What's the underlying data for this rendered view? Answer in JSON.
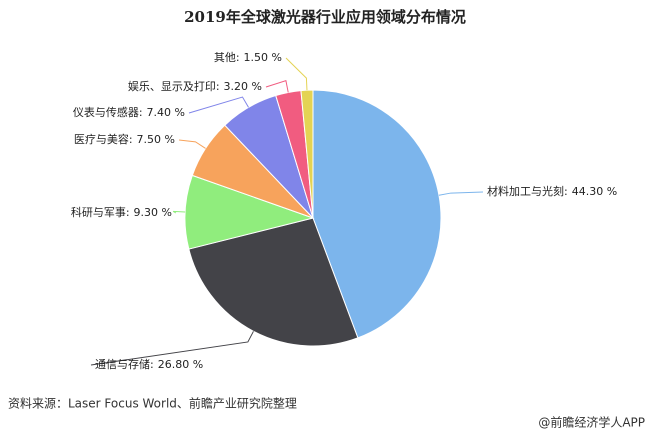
{
  "chart_data": {
    "type": "pie",
    "title": "2019年全球激光器行业应用领域分布情况",
    "categories": [
      "材料加工与光刻:",
      "通信与存储:",
      "科研与军事:",
      "医疗与美容:",
      "仪表与传感器:",
      "娱乐、显示及打印:",
      "其他:"
    ],
    "values": [
      44.3,
      26.8,
      9.3,
      7.5,
      7.4,
      3.2,
      1.5
    ],
    "value_labels": [
      "44.30 %",
      "26.80 %",
      "9.30 %",
      "7.50 %",
      "7.40 %",
      "3.20 %",
      "1.50 %"
    ],
    "colors": [
      "#7cb5ec",
      "#434348",
      "#90ed7d",
      "#f7a35c",
      "#8085e9",
      "#f15c80",
      "#e4d354"
    ],
    "source": "资料来源：Laser Focus World、前瞻产业研究院整理",
    "credit": "@前瞻经济学人APP"
  }
}
